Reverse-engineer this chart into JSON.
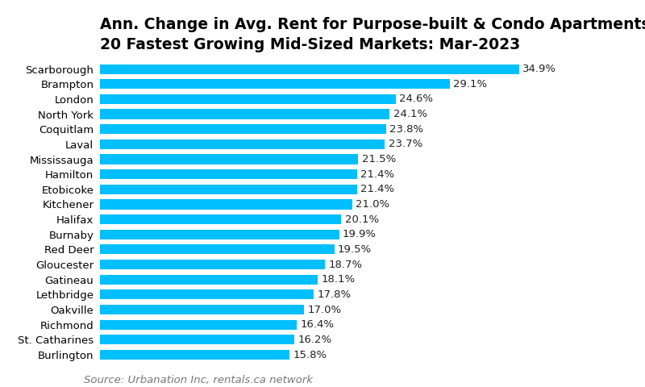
{
  "title_line1": "Ann. Change in Avg. Rent for Purpose-built & Condo Apartments",
  "title_line2": "20 Fastest Growing Mid-Sized Markets: Mar-2023",
  "source": "Source: Urbanation Inc, rentals.ca network",
  "categories": [
    "Burlington",
    "St. Catharines",
    "Richmond",
    "Oakville",
    "Lethbridge",
    "Gatineau",
    "Gloucester",
    "Red Deer",
    "Burnaby",
    "Halifax",
    "Kitchener",
    "Etobicoke",
    "Hamilton",
    "Mississauga",
    "Laval",
    "Coquitlam",
    "North York",
    "London",
    "Brampton",
    "Scarborough"
  ],
  "values": [
    15.8,
    16.2,
    16.4,
    17.0,
    17.8,
    18.1,
    18.7,
    19.5,
    19.9,
    20.1,
    21.0,
    21.4,
    21.4,
    21.5,
    23.7,
    23.8,
    24.1,
    24.6,
    29.1,
    34.9
  ],
  "bar_color": "#00BFFF",
  "text_color": "#000000",
  "label_color": "#222222",
  "source_color": "#777777",
  "background_color": "#ffffff",
  "bar_height": 0.65,
  "xlim": [
    0,
    40
  ],
  "title_fontsize": 13.5,
  "label_fontsize": 9.5,
  "tick_fontsize": 9.5,
  "source_fontsize": 9.5
}
